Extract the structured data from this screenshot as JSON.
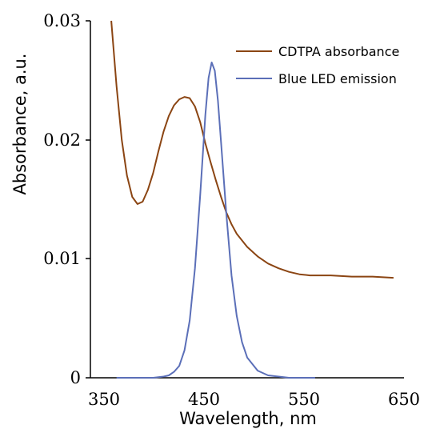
{
  "chart_data": {
    "type": "line",
    "xlabel": "Wavelength, nm",
    "ylabel": "Absorbance, a.u.",
    "xlim": [
      350,
      650
    ],
    "ylim": [
      0,
      0.03
    ],
    "x_ticks": [
      "350",
      "450",
      "550",
      "650"
    ],
    "y_ticks": [
      "0",
      "0.01",
      "0.02",
      "0.03"
    ],
    "grid": false,
    "legend_position": "top-right",
    "series": [
      {
        "name": "CDTPA absorbance",
        "color": "#8B4513",
        "x": [
          370,
          375,
          380,
          385,
          390,
          395,
          400,
          405,
          410,
          415,
          420,
          425,
          430,
          435,
          440,
          445,
          450,
          455,
          460,
          465,
          470,
          475,
          480,
          485,
          490,
          500,
          510,
          520,
          530,
          540,
          550,
          560,
          580,
          600,
          620,
          640
        ],
        "y": [
          0.03,
          0.0245,
          0.02,
          0.017,
          0.0152,
          0.0146,
          0.0148,
          0.0158,
          0.0172,
          0.019,
          0.0207,
          0.022,
          0.0229,
          0.0234,
          0.0236,
          0.0235,
          0.0228,
          0.0215,
          0.0197,
          0.0181,
          0.0166,
          0.0152,
          0.0139,
          0.0129,
          0.0121,
          0.011,
          0.0102,
          0.0096,
          0.0092,
          0.0089,
          0.0087,
          0.0086,
          0.0086,
          0.0085,
          0.0085,
          0.0084
        ]
      },
      {
        "name": "Blue LED emission",
        "color": "#5B6FB8",
        "x": [
          375,
          390,
          400,
          410,
          420,
          425,
          430,
          435,
          440,
          445,
          450,
          455,
          460,
          463,
          466,
          469,
          472,
          475,
          480,
          485,
          490,
          495,
          500,
          510,
          520,
          530,
          540,
          550,
          565
        ],
        "y": [
          0,
          0,
          0,
          0,
          0.0001,
          0.0002,
          0.0005,
          0.001,
          0.0023,
          0.0048,
          0.0092,
          0.0153,
          0.0221,
          0.0252,
          0.0265,
          0.0258,
          0.0233,
          0.0198,
          0.0138,
          0.0086,
          0.0052,
          0.003,
          0.0017,
          0.0006,
          0.0002,
          0.0001,
          0,
          0,
          0
        ]
      }
    ]
  }
}
